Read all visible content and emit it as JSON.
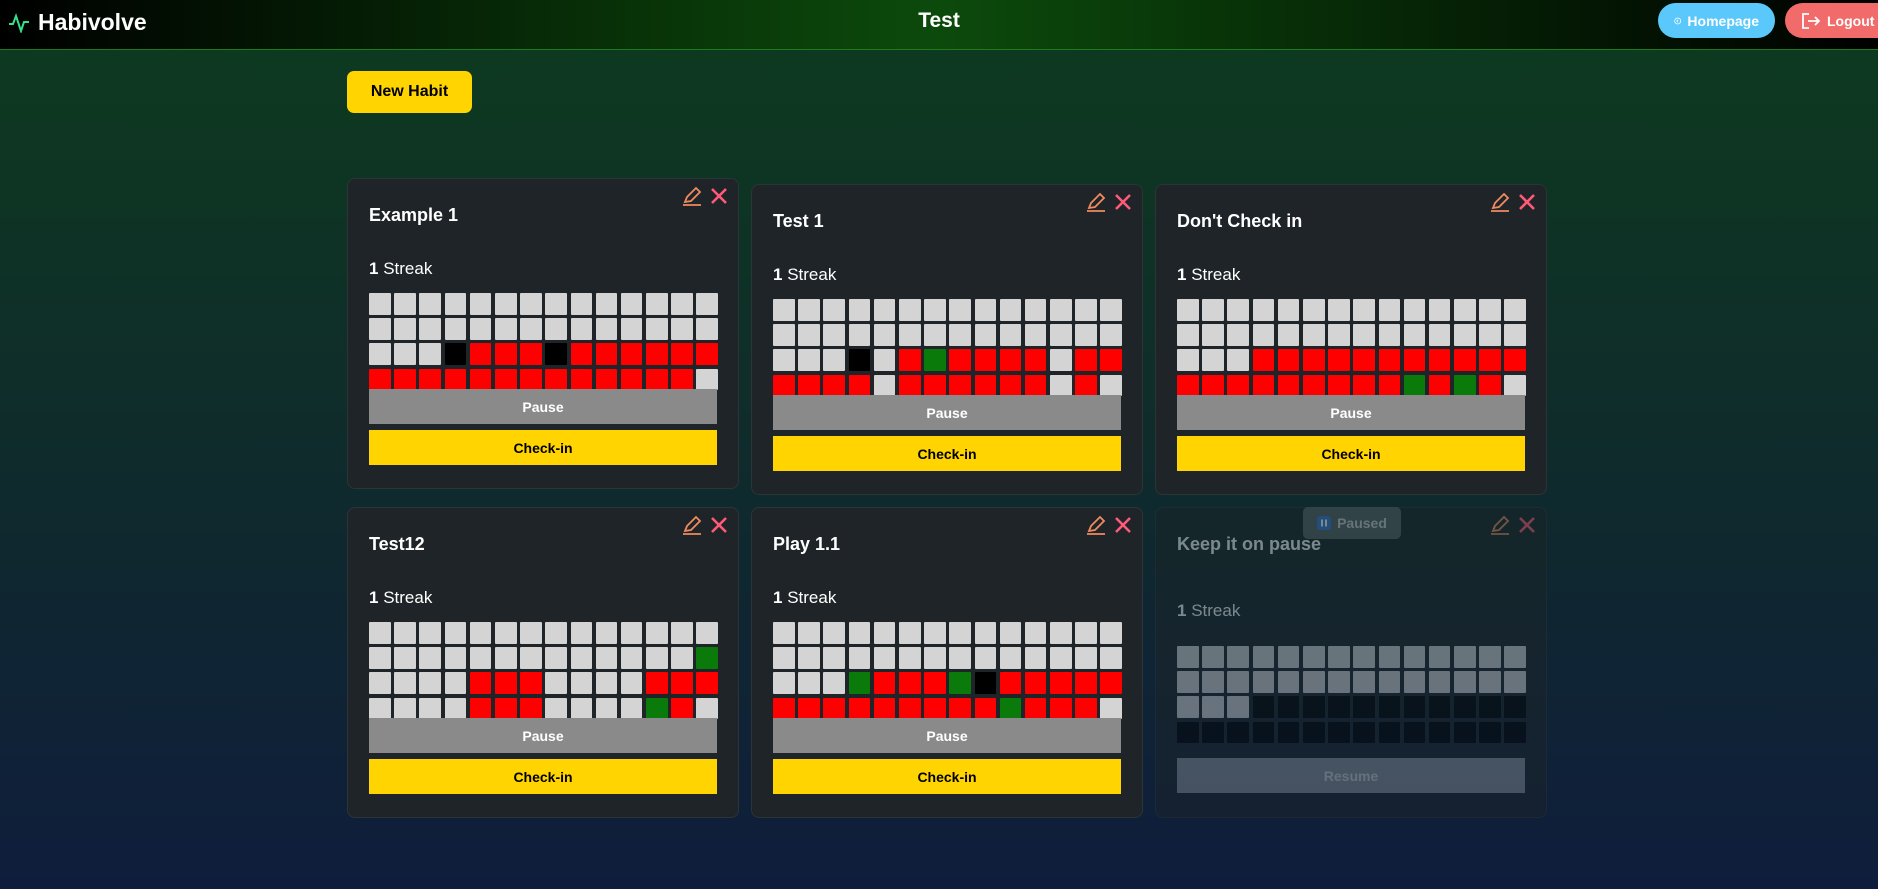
{
  "header": {
    "brand": "Habivolve",
    "title": "Test",
    "buttons": [
      "Homepage",
      "Logout"
    ]
  },
  "new_habit": "New Habit",
  "habits": [
    {
      "name": "Example 1",
      "streak": 1,
      "streak_label": "Streak",
      "days": [
        "wwwwwwwwwwwwww",
        "wwwwwwwwwwwwww",
        "wwwkrrrkrrrrrr",
        "rrrrrrrrrrrrrw"
      ],
      "actions": [
        "Pause",
        "Check-in"
      ]
    },
    {
      "name": "Test 1",
      "streak": 1,
      "streak_label": "Streak",
      "days": [
        "wwwwwwwwwwwwww",
        "wwwwwwwwwwwwww",
        "wwwkwrgrrrrwrr",
        "rrrrwrrrrrrwrw"
      ],
      "actions": [
        "Pause",
        "Check-in"
      ]
    },
    {
      "name": "Don't Check in",
      "streak": 1,
      "streak_label": "Streak",
      "days": [
        "wwwwwwwwwwwwww",
        "wwwwwwwwwwwwww",
        "wwwrrrrrrrrrrr",
        "rrrrrrrrrgrgrw"
      ],
      "actions": [
        "Pause",
        "Check-in"
      ]
    },
    {
      "name": "Test12",
      "streak": 1,
      "streak_label": "Streak",
      "days": [
        "wwwwwwwwwwwwww",
        "wwwwwwwwwwwwwg",
        "wwwwrrrwwwwrrr",
        "wwwwrrrwwwwgrw"
      ],
      "actions": [
        "Pause",
        "Check-in"
      ]
    },
    {
      "name": "Play 1.1",
      "streak": 1,
      "streak_label": "Streak",
      "days": [
        "wwwwwwwwwwwwww",
        "wwwwwwwwwwwwww",
        "wwwgrrrgkrrrrr",
        "rrrrrrrrrgrrrw"
      ],
      "actions": [
        "Pause",
        "Check-in"
      ]
    },
    {
      "name": "Keep it on pause",
      "status": "Paused",
      "streak": 1,
      "streak_label": "Streak",
      "days": [
        "wwwwwwwwwwwwww",
        "wwwwwwwwwwwwww",
        "wwwkkkkkkkkkkk",
        "kkkkkkkkkkkkkk"
      ],
      "actions": [
        "Resume"
      ]
    }
  ]
}
